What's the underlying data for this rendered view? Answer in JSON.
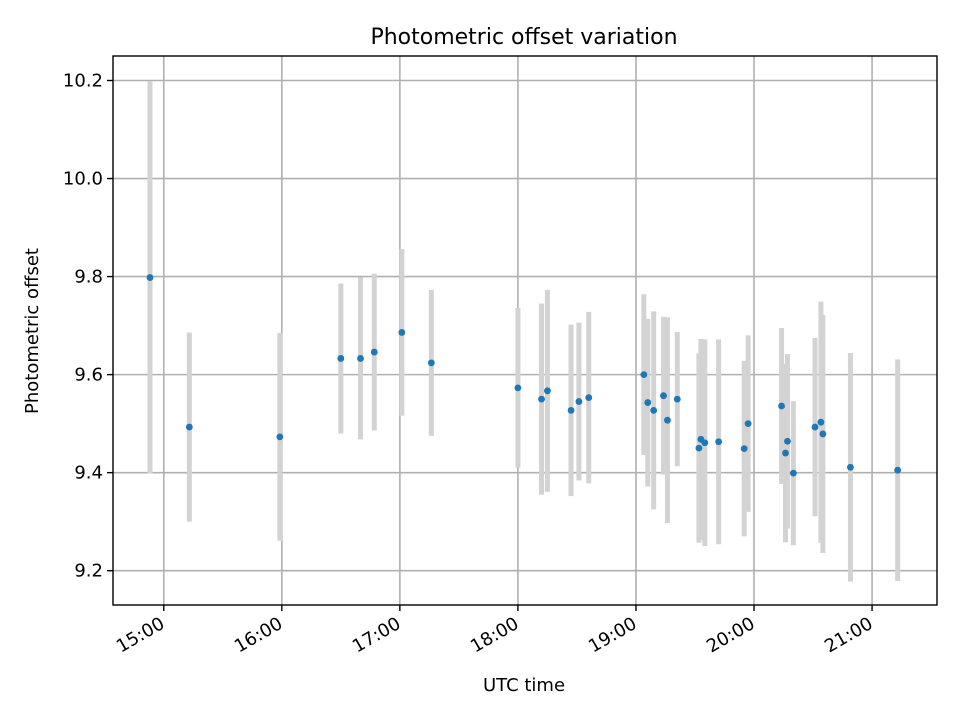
{
  "chart_data": {
    "type": "scatter",
    "title": "Photometric offset variation",
    "xlabel": "UTC time",
    "ylabel": "Photometric offset",
    "x_unit": "hours UTC",
    "xlim": [
      14.57,
      21.55
    ],
    "ylim": [
      9.13,
      10.25
    ],
    "x_ticks": [
      {
        "value": 15,
        "label": "15:00"
      },
      {
        "value": 16,
        "label": "16:00"
      },
      {
        "value": 17,
        "label": "17:00"
      },
      {
        "value": 18,
        "label": "18:00"
      },
      {
        "value": 19,
        "label": "19:00"
      },
      {
        "value": 20,
        "label": "20:00"
      },
      {
        "value": 21,
        "label": "21:00"
      }
    ],
    "y_ticks": [
      {
        "value": 9.2,
        "label": "9.2"
      },
      {
        "value": 9.4,
        "label": "9.4"
      },
      {
        "value": 9.6,
        "label": "9.6"
      },
      {
        "value": 9.8,
        "label": "9.8"
      },
      {
        "value": 10.0,
        "label": "10.0"
      },
      {
        "value": 10.2,
        "label": "10.2"
      }
    ],
    "grid": true,
    "point_color": "#1f77b4",
    "errorbar_color": "#d3d3d3",
    "points": [
      {
        "x": "14:53",
        "y": 9.798,
        "err": 0.4
      },
      {
        "x": "15:13",
        "y": 9.493,
        "err": 0.193
      },
      {
        "x": "15:59",
        "y": 9.473,
        "err": 0.212
      },
      {
        "x": "16:30",
        "y": 9.633,
        "err": 0.153
      },
      {
        "x": "16:40",
        "y": 9.633,
        "err": 0.165
      },
      {
        "x": "16:47",
        "y": 9.646,
        "err": 0.16
      },
      {
        "x": "17:01",
        "y": 9.686,
        "err": 0.17
      },
      {
        "x": "17:16",
        "y": 9.624,
        "err": 0.149
      },
      {
        "x": "18:00",
        "y": 9.573,
        "err": 0.163
      },
      {
        "x": "18:12",
        "y": 9.55,
        "err": 0.195
      },
      {
        "x": "18:15",
        "y": 9.567,
        "err": 0.206
      },
      {
        "x": "18:27",
        "y": 9.527,
        "err": 0.175
      },
      {
        "x": "18:31",
        "y": 9.545,
        "err": 0.161
      },
      {
        "x": "18:36",
        "y": 9.553,
        "err": 0.175
      },
      {
        "x": "19:04",
        "y": 9.6,
        "err": 0.164
      },
      {
        "x": "19:06",
        "y": 9.543,
        "err": 0.171
      },
      {
        "x": "19:09",
        "y": 9.527,
        "err": 0.202
      },
      {
        "x": "19:14",
        "y": 9.557,
        "err": 0.161
      },
      {
        "x": "19:16",
        "y": 9.507,
        "err": 0.21
      },
      {
        "x": "19:21",
        "y": 9.55,
        "err": 0.137
      },
      {
        "x": "19:32",
        "y": 9.45,
        "err": 0.193
      },
      {
        "x": "19:33",
        "y": 9.468,
        "err": 0.205
      },
      {
        "x": "19:35",
        "y": 9.461,
        "err": 0.211
      },
      {
        "x": "19:42",
        "y": 9.463,
        "err": 0.209
      },
      {
        "x": "19:55",
        "y": 9.449,
        "err": 0.179
      },
      {
        "x": "19:57",
        "y": 9.5,
        "err": 0.18
      },
      {
        "x": "20:14",
        "y": 9.536,
        "err": 0.159
      },
      {
        "x": "20:16",
        "y": 9.44,
        "err": 0.182
      },
      {
        "x": "20:17",
        "y": 9.464,
        "err": 0.178
      },
      {
        "x": "20:20",
        "y": 9.399,
        "err": 0.147
      },
      {
        "x": "20:31",
        "y": 9.493,
        "err": 0.182
      },
      {
        "x": "20:34",
        "y": 9.503,
        "err": 0.246
      },
      {
        "x": "20:35",
        "y": 9.479,
        "err": 0.243
      },
      {
        "x": "20:49",
        "y": 9.411,
        "err": 0.233
      },
      {
        "x": "21:13",
        "y": 9.405,
        "err": 0.226
      }
    ]
  }
}
